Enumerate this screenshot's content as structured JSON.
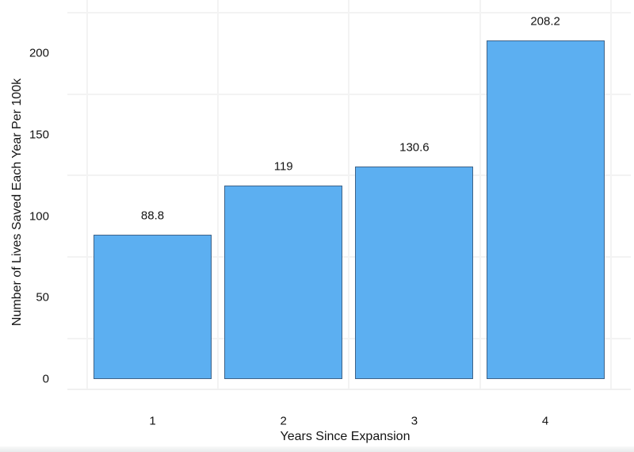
{
  "chart_data": {
    "type": "bar",
    "title": "",
    "xlabel": "Years Since Expansion",
    "ylabel": "Number of Lives Saved Each Year Per 100k",
    "categories": [
      "1",
      "2",
      "3",
      "4"
    ],
    "values": [
      88.8,
      119,
      130.6,
      208.2
    ],
    "value_labels": [
      "88.8",
      "119",
      "130.6",
      "208.2"
    ],
    "ytick_values": [
      0,
      50,
      100,
      150,
      200
    ],
    "ytick_labels": [
      "0",
      "50",
      "100",
      "150",
      "200"
    ],
    "ylim": [
      -11,
      229
    ],
    "grid": {
      "on": true,
      "horizontal_lines_at": [
        25,
        75,
        125,
        175,
        225
      ],
      "vertical_lines_between_categories": [
        0.5,
        1.5,
        2.5,
        3.5,
        4.5
      ]
    },
    "legend_position": "none",
    "colors": {
      "bar_fill": "#5CAFF1",
      "bar_border": "#3E6389",
      "gridline": "#f3f3f3",
      "panel_edge": "#f0f0f0",
      "text": "#141414",
      "background": "#ffffff"
    }
  }
}
